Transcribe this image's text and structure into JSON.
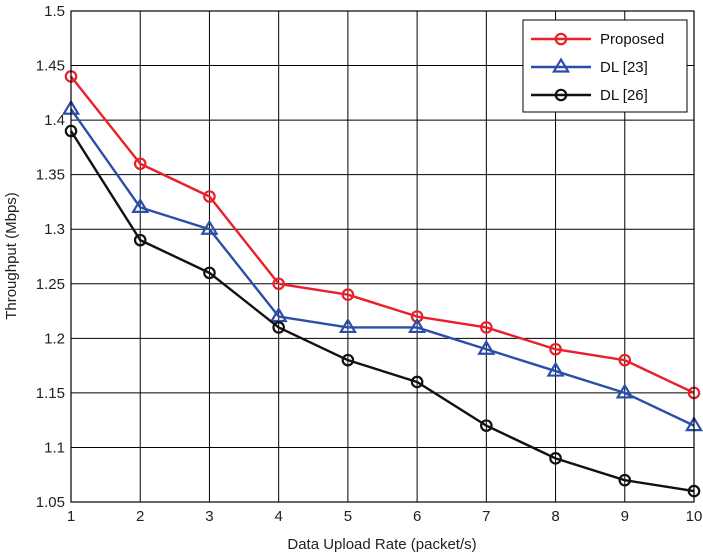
{
  "chart_data": {
    "type": "line",
    "title": "",
    "xlabel": "Data Upload Rate (packet/s)",
    "ylabel": "Throughput (Mbps)",
    "xlim": [
      1,
      10
    ],
    "ylim": [
      1.05,
      1.5
    ],
    "grid": true,
    "legend_position": "top-right",
    "x": [
      1,
      2,
      3,
      4,
      5,
      6,
      7,
      8,
      9,
      10
    ],
    "x_ticks": [
      "1",
      "2",
      "3",
      "4",
      "5",
      "6",
      "7",
      "8",
      "9",
      "10"
    ],
    "y_ticks": [
      "1.05",
      "1.1",
      "1.15",
      "1.2",
      "1.25",
      "1.3",
      "1.35",
      "1.4",
      "1.45",
      "1.5"
    ],
    "y_tick_values": [
      1.05,
      1.1,
      1.15,
      1.2,
      1.25,
      1.3,
      1.35,
      1.4,
      1.45,
      1.5
    ],
    "series": [
      {
        "name": "Proposed",
        "color": "#e8202a",
        "marker": "circle",
        "values": [
          1.44,
          1.36,
          1.33,
          1.25,
          1.24,
          1.22,
          1.21,
          1.19,
          1.18,
          1.15
        ]
      },
      {
        "name": "DL [23]",
        "color": "#2b4fa8",
        "marker": "triangle",
        "values": [
          1.41,
          1.32,
          1.3,
          1.22,
          1.21,
          1.21,
          1.19,
          1.17,
          1.15,
          1.12
        ]
      },
      {
        "name": "DL [26]",
        "color": "#111111",
        "marker": "circle",
        "values": [
          1.39,
          1.29,
          1.26,
          1.21,
          1.18,
          1.16,
          1.12,
          1.09,
          1.07,
          1.06
        ]
      }
    ]
  }
}
